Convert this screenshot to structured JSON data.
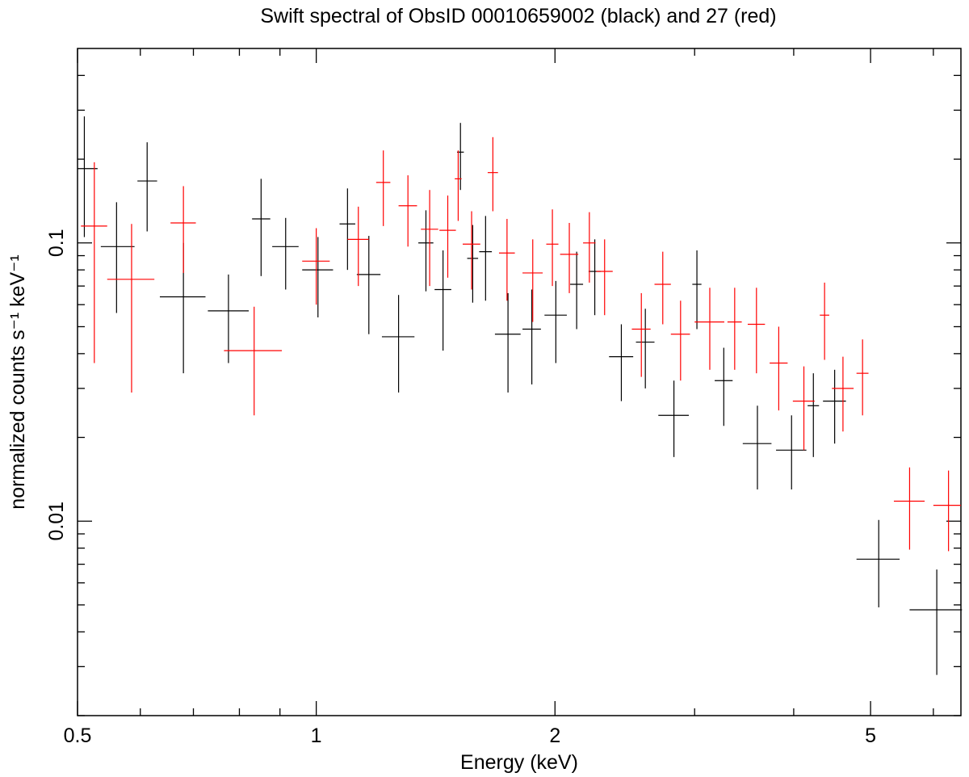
{
  "chart_data": {
    "type": "scatter",
    "title": "Swift spectral of ObsID 00010659002 (black) and 27 (red)",
    "xlabel": "Energy (keV)",
    "ylabel": "normalized counts s⁻¹ keV⁻¹",
    "x_scale": "log",
    "y_scale": "log",
    "xlim": [
      0.5,
      6.5
    ],
    "ylim": [
      0.002,
      0.5
    ],
    "x_ticks": [
      {
        "value": 0.5,
        "label": "0.5"
      },
      {
        "value": 1,
        "label": "1"
      },
      {
        "value": 2,
        "label": "2"
      },
      {
        "value": 5,
        "label": "5"
      }
    ],
    "y_ticks": [
      {
        "value": 0.01,
        "label": "0.01"
      },
      {
        "value": 0.1,
        "label": "0.1"
      }
    ],
    "series": [
      {
        "color": "#000000",
        "points": [
          {
            "x": 0.51,
            "xlo": 0.5,
            "xhi": 0.53,
            "y": 0.185,
            "ylo": 0.105,
            "yhi": 0.285
          },
          {
            "x": 0.56,
            "xlo": 0.535,
            "xhi": 0.59,
            "y": 0.097,
            "ylo": 0.056,
            "yhi": 0.14
          },
          {
            "x": 0.612,
            "xlo": 0.595,
            "xhi": 0.63,
            "y": 0.167,
            "ylo": 0.11,
            "yhi": 0.23
          },
          {
            "x": 0.68,
            "xlo": 0.635,
            "xhi": 0.725,
            "y": 0.064,
            "ylo": 0.034,
            "yhi": 0.1
          },
          {
            "x": 0.775,
            "xlo": 0.73,
            "xhi": 0.822,
            "y": 0.057,
            "ylo": 0.037,
            "yhi": 0.077
          },
          {
            "x": 0.852,
            "xlo": 0.83,
            "xhi": 0.875,
            "y": 0.122,
            "ylo": 0.076,
            "yhi": 0.17
          },
          {
            "x": 0.915,
            "xlo": 0.88,
            "xhi": 0.95,
            "y": 0.097,
            "ylo": 0.068,
            "yhi": 0.123
          },
          {
            "x": 1.005,
            "xlo": 0.96,
            "xhi": 1.05,
            "y": 0.08,
            "ylo": 0.054,
            "yhi": 0.105
          },
          {
            "x": 1.095,
            "xlo": 1.07,
            "xhi": 1.12,
            "y": 0.117,
            "ylo": 0.08,
            "yhi": 0.157
          },
          {
            "x": 1.165,
            "xlo": 1.125,
            "xhi": 1.205,
            "y": 0.077,
            "ylo": 0.047,
            "yhi": 0.106
          },
          {
            "x": 1.27,
            "xlo": 1.21,
            "xhi": 1.33,
            "y": 0.046,
            "ylo": 0.029,
            "yhi": 0.065
          },
          {
            "x": 1.375,
            "xlo": 1.345,
            "xhi": 1.405,
            "y": 0.1,
            "ylo": 0.067,
            "yhi": 0.131
          },
          {
            "x": 1.445,
            "xlo": 1.41,
            "xhi": 1.48,
            "y": 0.068,
            "ylo": 0.041,
            "yhi": 0.094
          },
          {
            "x": 1.52,
            "xlo": 1.505,
            "xhi": 1.535,
            "y": 0.212,
            "ylo": 0.155,
            "yhi": 0.27
          },
          {
            "x": 1.575,
            "xlo": 1.55,
            "xhi": 1.6,
            "y": 0.088,
            "ylo": 0.061,
            "yhi": 0.116
          },
          {
            "x": 1.635,
            "xlo": 1.605,
            "xhi": 1.665,
            "y": 0.093,
            "ylo": 0.062,
            "yhi": 0.125
          },
          {
            "x": 1.745,
            "xlo": 1.68,
            "xhi": 1.81,
            "y": 0.047,
            "ylo": 0.029,
            "yhi": 0.066
          },
          {
            "x": 1.87,
            "xlo": 1.82,
            "xhi": 1.92,
            "y": 0.049,
            "ylo": 0.031,
            "yhi": 0.068
          },
          {
            "x": 2.005,
            "xlo": 1.94,
            "xhi": 2.07,
            "y": 0.055,
            "ylo": 0.037,
            "yhi": 0.073
          },
          {
            "x": 2.13,
            "xlo": 2.09,
            "xhi": 2.17,
            "y": 0.071,
            "ylo": 0.049,
            "yhi": 0.093
          },
          {
            "x": 2.245,
            "xlo": 2.205,
            "xhi": 2.285,
            "y": 0.079,
            "ylo": 0.055,
            "yhi": 0.103
          },
          {
            "x": 2.425,
            "xlo": 2.34,
            "xhi": 2.51,
            "y": 0.039,
            "ylo": 0.027,
            "yhi": 0.051
          },
          {
            "x": 2.6,
            "xlo": 2.53,
            "xhi": 2.67,
            "y": 0.044,
            "ylo": 0.03,
            "yhi": 0.058
          },
          {
            "x": 2.825,
            "xlo": 2.7,
            "xhi": 2.95,
            "y": 0.024,
            "ylo": 0.017,
            "yhi": 0.032
          },
          {
            "x": 3.02,
            "xlo": 2.98,
            "xhi": 3.06,
            "y": 0.071,
            "ylo": 0.049,
            "yhi": 0.094
          },
          {
            "x": 3.265,
            "xlo": 3.18,
            "xhi": 3.35,
            "y": 0.032,
            "ylo": 0.022,
            "yhi": 0.042
          },
          {
            "x": 3.6,
            "xlo": 3.45,
            "xhi": 3.75,
            "y": 0.019,
            "ylo": 0.013,
            "yhi": 0.026
          },
          {
            "x": 3.975,
            "xlo": 3.8,
            "xhi": 4.15,
            "y": 0.018,
            "ylo": 0.013,
            "yhi": 0.024
          },
          {
            "x": 4.235,
            "xlo": 4.165,
            "xhi": 4.305,
            "y": 0.026,
            "ylo": 0.017,
            "yhi": 0.034
          },
          {
            "x": 4.505,
            "xlo": 4.355,
            "xhi": 4.655,
            "y": 0.027,
            "ylo": 0.019,
            "yhi": 0.035
          },
          {
            "x": 5.12,
            "xlo": 4.8,
            "xhi": 5.44,
            "y": 0.0073,
            "ylo": 0.0049,
            "yhi": 0.0101
          },
          {
            "x": 6.06,
            "xlo": 5.6,
            "xhi": 6.52,
            "y": 0.0048,
            "ylo": 0.0028,
            "yhi": 0.0067
          }
        ]
      },
      {
        "color": "#ff0000",
        "points": [
          {
            "x": 0.525,
            "xlo": 0.505,
            "xhi": 0.545,
            "y": 0.115,
            "ylo": 0.037,
            "yhi": 0.195
          },
          {
            "x": 0.585,
            "xlo": 0.545,
            "xhi": 0.625,
            "y": 0.074,
            "ylo": 0.029,
            "yhi": 0.117
          },
          {
            "x": 0.68,
            "xlo": 0.655,
            "xhi": 0.705,
            "y": 0.118,
            "ylo": 0.078,
            "yhi": 0.16
          },
          {
            "x": 0.835,
            "xlo": 0.765,
            "xhi": 0.905,
            "y": 0.041,
            "ylo": 0.024,
            "yhi": 0.059
          },
          {
            "x": 1.0,
            "xlo": 0.96,
            "xhi": 1.04,
            "y": 0.086,
            "ylo": 0.06,
            "yhi": 0.113
          },
          {
            "x": 1.13,
            "xlo": 1.095,
            "xhi": 1.165,
            "y": 0.103,
            "ylo": 0.07,
            "yhi": 0.135
          },
          {
            "x": 1.215,
            "xlo": 1.19,
            "xhi": 1.24,
            "y": 0.165,
            "ylo": 0.115,
            "yhi": 0.215
          },
          {
            "x": 1.305,
            "xlo": 1.27,
            "xhi": 1.34,
            "y": 0.136,
            "ylo": 0.097,
            "yhi": 0.175
          },
          {
            "x": 1.39,
            "xlo": 1.355,
            "xhi": 1.425,
            "y": 0.112,
            "ylo": 0.07,
            "yhi": 0.155
          },
          {
            "x": 1.465,
            "xlo": 1.43,
            "xhi": 1.5,
            "y": 0.111,
            "ylo": 0.075,
            "yhi": 0.148
          },
          {
            "x": 1.51,
            "xlo": 1.495,
            "xhi": 1.525,
            "y": 0.17,
            "ylo": 0.12,
            "yhi": 0.215
          },
          {
            "x": 1.57,
            "xlo": 1.53,
            "xhi": 1.61,
            "y": 0.099,
            "ylo": 0.068,
            "yhi": 0.13
          },
          {
            "x": 1.67,
            "xlo": 1.645,
            "xhi": 1.695,
            "y": 0.179,
            "ylo": 0.13,
            "yhi": 0.24
          },
          {
            "x": 1.74,
            "xlo": 1.7,
            "xhi": 1.78,
            "y": 0.092,
            "ylo": 0.062,
            "yhi": 0.122
          },
          {
            "x": 1.875,
            "xlo": 1.82,
            "xhi": 1.93,
            "y": 0.078,
            "ylo": 0.052,
            "yhi": 0.103
          },
          {
            "x": 1.985,
            "xlo": 1.95,
            "xhi": 2.02,
            "y": 0.099,
            "ylo": 0.07,
            "yhi": 0.132
          },
          {
            "x": 2.085,
            "xlo": 2.03,
            "xhi": 2.14,
            "y": 0.091,
            "ylo": 0.066,
            "yhi": 0.118
          },
          {
            "x": 2.21,
            "xlo": 2.17,
            "xhi": 2.25,
            "y": 0.1,
            "ylo": 0.072,
            "yhi": 0.129
          },
          {
            "x": 2.31,
            "xlo": 2.255,
            "xhi": 2.365,
            "y": 0.079,
            "ylo": 0.055,
            "yhi": 0.103
          },
          {
            "x": 2.57,
            "xlo": 2.5,
            "xhi": 2.64,
            "y": 0.049,
            "ylo": 0.033,
            "yhi": 0.066
          },
          {
            "x": 2.735,
            "xlo": 2.67,
            "xhi": 2.8,
            "y": 0.071,
            "ylo": 0.051,
            "yhi": 0.093
          },
          {
            "x": 2.88,
            "xlo": 2.8,
            "xhi": 2.96,
            "y": 0.047,
            "ylo": 0.032,
            "yhi": 0.062
          },
          {
            "x": 3.135,
            "xlo": 3.0,
            "xhi": 3.27,
            "y": 0.052,
            "ylo": 0.035,
            "yhi": 0.069
          },
          {
            "x": 3.37,
            "xlo": 3.3,
            "xhi": 3.44,
            "y": 0.052,
            "ylo": 0.035,
            "yhi": 0.069
          },
          {
            "x": 3.59,
            "xlo": 3.5,
            "xhi": 3.68,
            "y": 0.051,
            "ylo": 0.034,
            "yhi": 0.069
          },
          {
            "x": 3.83,
            "xlo": 3.73,
            "xhi": 3.93,
            "y": 0.037,
            "ylo": 0.025,
            "yhi": 0.05
          },
          {
            "x": 4.12,
            "xlo": 3.99,
            "xhi": 4.25,
            "y": 0.027,
            "ylo": 0.018,
            "yhi": 0.036
          },
          {
            "x": 4.375,
            "xlo": 4.315,
            "xhi": 4.435,
            "y": 0.055,
            "ylo": 0.038,
            "yhi": 0.072
          },
          {
            "x": 4.615,
            "xlo": 4.47,
            "xhi": 4.76,
            "y": 0.03,
            "ylo": 0.021,
            "yhi": 0.039
          },
          {
            "x": 4.885,
            "xlo": 4.8,
            "xhi": 4.97,
            "y": 0.034,
            "ylo": 0.024,
            "yhi": 0.045
          },
          {
            "x": 5.6,
            "xlo": 5.35,
            "xhi": 5.85,
            "y": 0.0118,
            "ylo": 0.0079,
            "yhi": 0.0156
          },
          {
            "x": 6.27,
            "xlo": 6.0,
            "xhi": 6.5,
            "y": 0.0114,
            "ylo": 0.0078,
            "yhi": 0.0152
          }
        ]
      }
    ]
  }
}
